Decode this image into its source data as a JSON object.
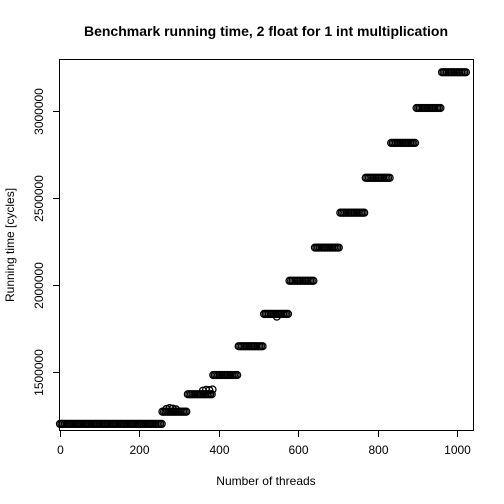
{
  "chart_data": {
    "type": "scatter",
    "title": "Benchmark running time, 2 float for 1 int multiplication",
    "xlabel": "Number of threads",
    "ylabel": "Running time [cycles]",
    "xlim": [
      0,
      1040
    ],
    "ylim": [
      1170000,
      3290000
    ],
    "xticks": [
      0,
      200,
      400,
      600,
      800,
      1000
    ],
    "yticks": [
      1500000,
      2000000,
      2500000,
      3000000
    ],
    "grid": false,
    "marker": "open-circle",
    "color": "#000000",
    "step": 4,
    "segments": [
      {
        "x_start": 0,
        "x_end": 256,
        "y": 1205000
      },
      {
        "x_start": 258,
        "x_end": 320,
        "y": 1275000
      },
      {
        "x_start": 322,
        "x_end": 384,
        "y": 1375000
      },
      {
        "x_start": 386,
        "x_end": 448,
        "y": 1485000
      },
      {
        "x_start": 450,
        "x_end": 512,
        "y": 1650000
      },
      {
        "x_start": 514,
        "x_end": 576,
        "y": 1835000
      },
      {
        "x_start": 578,
        "x_end": 640,
        "y": 2025000
      },
      {
        "x_start": 642,
        "x_end": 704,
        "y": 2215000
      },
      {
        "x_start": 706,
        "x_end": 768,
        "y": 2415000
      },
      {
        "x_start": 770,
        "x_end": 832,
        "y": 2615000
      },
      {
        "x_start": 834,
        "x_end": 896,
        "y": 2815000
      },
      {
        "x_start": 898,
        "x_end": 960,
        "y": 3015000
      },
      {
        "x_start": 962,
        "x_end": 1024,
        "y": 3220000
      }
    ],
    "outliers": [
      {
        "x": 268,
        "y": 1290000
      },
      {
        "x": 276,
        "y": 1295000
      },
      {
        "x": 284,
        "y": 1292000
      },
      {
        "x": 292,
        "y": 1288000
      },
      {
        "x": 360,
        "y": 1395000
      },
      {
        "x": 368,
        "y": 1400000
      },
      {
        "x": 376,
        "y": 1398000
      },
      {
        "x": 384,
        "y": 1402000
      },
      {
        "x": 546,
        "y": 1820000
      }
    ]
  }
}
